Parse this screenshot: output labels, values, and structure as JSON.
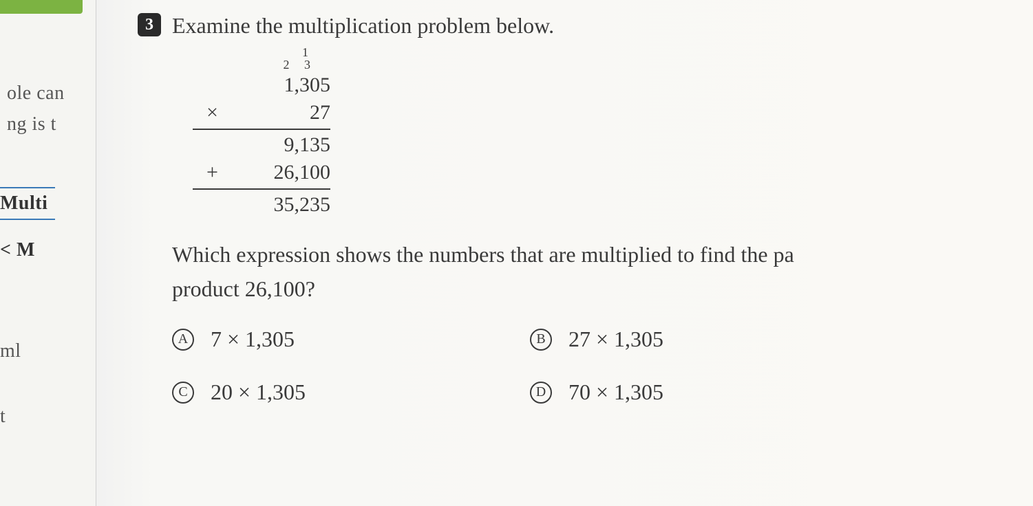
{
  "question": {
    "number": "3",
    "prompt": "Examine the multiplication problem below.",
    "sub_prompt_line1": "Which expression shows the numbers that are multiplied to find the pa",
    "sub_prompt_line2": "product 26,100?"
  },
  "multiplication": {
    "carry_top": "1",
    "carry_second_left": "2",
    "carry_second_right": "3",
    "multiplicand": "1,305",
    "multiplier": "27",
    "mult_sign": "×",
    "partial1": "9,135",
    "plus_sign": "+",
    "partial2": "26,100",
    "result": "35,235"
  },
  "options": {
    "a_letter": "A",
    "a_text": "7 × 1,305",
    "b_letter": "B",
    "b_text": "27 × 1,305",
    "c_letter": "C",
    "c_text": "20 × 1,305",
    "d_letter": "D",
    "d_text": "70 × 1,305"
  },
  "left_fragments": {
    "f1": "ole can",
    "f2": "ng is t",
    "f3": "Multi",
    "f4": "< M",
    "f5": "ml",
    "f6": "t"
  },
  "colors": {
    "badge_bg": "#2a2a2a",
    "badge_fg": "#ffffff",
    "text": "#3a3a3a",
    "green_tab": "#7cb342",
    "blue_rule": "#3a7ab8",
    "page_bg": "#faf9f5"
  },
  "typography": {
    "body_fontsize": 32,
    "badge_fontsize": 24,
    "carry_fontsize": 18,
    "option_letter_fontsize": 20
  }
}
